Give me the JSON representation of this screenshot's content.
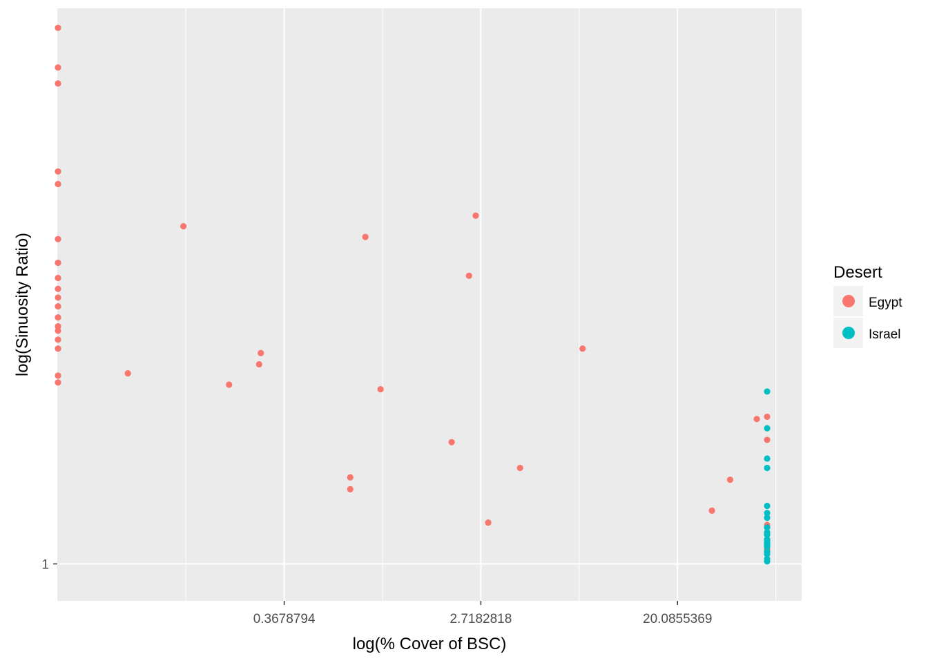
{
  "chart_data": {
    "type": "scatter",
    "xlabel": "log(% Cover of BSC)",
    "ylabel": "log(Sinuosity Ratio)",
    "x_scale": "log",
    "y_scale": "log",
    "xlim": [
      0.0366,
      71
    ],
    "ylim": [
      0.985,
      1.255
    ],
    "x_ticks": [
      0.3678794,
      2.7182818,
      20.0855369
    ],
    "x_tick_labels": [
      "0.3678794",
      "2.7182818",
      "20.0855369"
    ],
    "y_ticks": [
      1
    ],
    "y_tick_labels": [
      "1"
    ],
    "grid": true,
    "legend": {
      "title": "Desert",
      "position": "right",
      "entries": [
        "Egypt",
        "Israel"
      ]
    },
    "colors": {
      "Egypt": "#F8766D",
      "Israel": "#00BFC4",
      "panel": "#EBEBEB",
      "grid": "#FFFFFF"
    },
    "series": [
      {
        "name": "Egypt",
        "points": [
          [
            0.0366,
            1.245
          ],
          [
            0.0366,
            1.225
          ],
          [
            0.0366,
            1.217
          ],
          [
            0.0366,
            1.174
          ],
          [
            0.0366,
            1.168
          ],
          [
            0.0366,
            1.142
          ],
          [
            0.0366,
            1.131
          ],
          [
            0.0366,
            1.124
          ],
          [
            0.0366,
            1.119
          ],
          [
            0.0366,
            1.115
          ],
          [
            0.0366,
            1.111
          ],
          [
            0.0366,
            1.106
          ],
          [
            0.0366,
            1.102
          ],
          [
            0.0366,
            1.1
          ],
          [
            0.0366,
            1.096
          ],
          [
            0.0366,
            1.092
          ],
          [
            0.0366,
            1.08
          ],
          [
            0.0366,
            1.077
          ],
          [
            0.075,
            1.081
          ],
          [
            0.132,
            1.148
          ],
          [
            0.21,
            1.076
          ],
          [
            0.285,
            1.085
          ],
          [
            0.29,
            1.09
          ],
          [
            0.72,
            1.036
          ],
          [
            0.72,
            1.031
          ],
          [
            0.84,
            1.143
          ],
          [
            0.98,
            1.074
          ],
          [
            2.02,
            1.051
          ],
          [
            2.41,
            1.125
          ],
          [
            4.05,
            1.04
          ],
          [
            2.58,
            1.153
          ],
          [
            2.93,
            1.017
          ],
          [
            7.65,
            1.092
          ],
          [
            28.5,
            1.022
          ],
          [
            34.3,
            1.035
          ],
          [
            45.0,
            1.061
          ],
          [
            61.0,
            1.016
          ],
          [
            60.5,
            1.052
          ],
          [
            55.0,
            1.006
          ],
          [
            87.0,
            1.062
          ]
        ]
      },
      {
        "name": "Israel",
        "points": [
          [
            110,
            1.073
          ],
          [
            109,
            1.057
          ],
          [
            114,
            1.044
          ],
          [
            122,
            1.04
          ],
          [
            117,
            1.024
          ],
          [
            98,
            1.021
          ],
          [
            115,
            1.019
          ],
          [
            115,
            1.015
          ],
          [
            112,
            1.013
          ],
          [
            107,
            1.012
          ],
          [
            121,
            1.012
          ],
          [
            112,
            1.01
          ],
          [
            124,
            1.01
          ],
          [
            106,
            1.009
          ],
          [
            110,
            1.008
          ],
          [
            118,
            1.008
          ],
          [
            114,
            1.007
          ],
          [
            110,
            1.005
          ],
          [
            120,
            1.005
          ],
          [
            113,
            1.004
          ],
          [
            116,
            1.002
          ],
          [
            115,
            1.001
          ]
        ]
      }
    ]
  }
}
